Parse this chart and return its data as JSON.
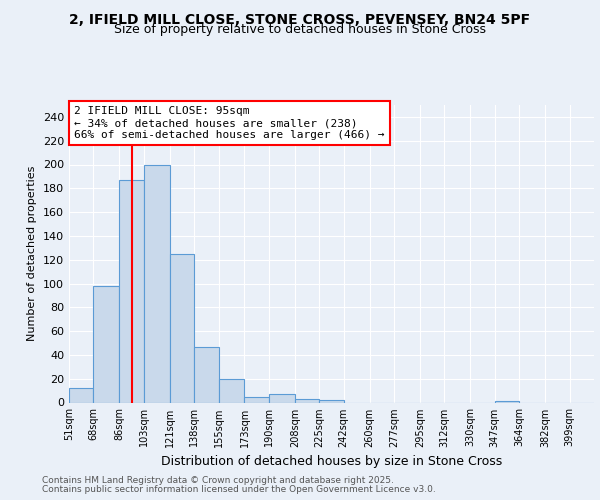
{
  "title1": "2, IFIELD MILL CLOSE, STONE CROSS, PEVENSEY, BN24 5PF",
  "title2": "Size of property relative to detached houses in Stone Cross",
  "xlabel": "Distribution of detached houses by size in Stone Cross",
  "ylabel": "Number of detached properties",
  "bin_labels": [
    "51sqm",
    "68sqm",
    "86sqm",
    "103sqm",
    "121sqm",
    "138sqm",
    "155sqm",
    "173sqm",
    "190sqm",
    "208sqm",
    "225sqm",
    "242sqm",
    "260sqm",
    "277sqm",
    "295sqm",
    "312sqm",
    "330sqm",
    "347sqm",
    "364sqm",
    "382sqm",
    "399sqm"
  ],
  "bar_heights": [
    12,
    98,
    187,
    200,
    125,
    47,
    20,
    5,
    7,
    3,
    2,
    0,
    0,
    0,
    0,
    0,
    0,
    1,
    0,
    0,
    0
  ],
  "bar_color": "#c9d9eb",
  "bar_edge_color": "#5b9bd5",
  "red_line_x": 95,
  "bin_edges": [
    51,
    68,
    86,
    103,
    121,
    138,
    155,
    173,
    190,
    208,
    225,
    242,
    260,
    277,
    295,
    312,
    330,
    347,
    364,
    382,
    399,
    416
  ],
  "annotation_title": "2 IFIELD MILL CLOSE: 95sqm",
  "annotation_line1": "← 34% of detached houses are smaller (238)",
  "annotation_line2": "66% of semi-detached houses are larger (466) →",
  "ylim": [
    0,
    250
  ],
  "yticks": [
    0,
    20,
    40,
    60,
    80,
    100,
    120,
    140,
    160,
    180,
    200,
    220,
    240
  ],
  "background_color": "#eaf0f8",
  "plot_bg_color": "#eaf0f8",
  "grid_color": "#ffffff",
  "footer1": "Contains HM Land Registry data © Crown copyright and database right 2025.",
  "footer2": "Contains public sector information licensed under the Open Government Licence v3.0."
}
